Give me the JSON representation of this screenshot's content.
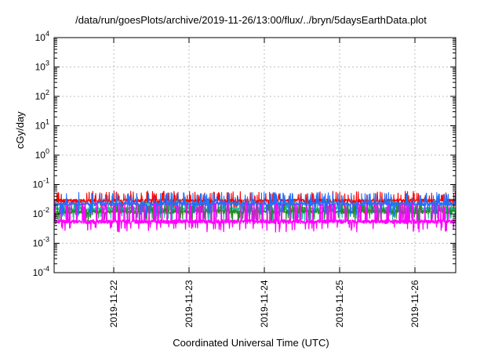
{
  "chart_data": {
    "type": "line",
    "title": "/data/run/goesPlots/archive/2019-11-26/13:00/flux/../bryn/5daysEarthData.plot",
    "xlabel": "Coordinated Universal Time (UTC)",
    "ylabel": "cGy/day",
    "x_scale": "time",
    "y_scale": "log",
    "x_range": [
      "2019-11-21T05:00:00Z",
      "2019-11-26T13:00:00Z"
    ],
    "ylim": [
      0.0001,
      10000
    ],
    "grid": true,
    "y_ticks": [
      {
        "base": "10",
        "exp": "4"
      },
      {
        "base": "10",
        "exp": "3"
      },
      {
        "base": "10",
        "exp": "2"
      },
      {
        "base": "10",
        "exp": "1"
      },
      {
        "base": "10",
        "exp": "0"
      },
      {
        "base": "10",
        "exp": "-1"
      },
      {
        "base": "10",
        "exp": "-2"
      },
      {
        "base": "10",
        "exp": "-3"
      },
      {
        "base": "10",
        "exp": "-4"
      }
    ],
    "x_ticks": [
      "2019-11-22",
      "2019-11-23",
      "2019-11-24",
      "2019-11-25",
      "2019-11-26"
    ],
    "series": [
      {
        "color": "#ff0000",
        "baseline": 0.028,
        "spike": 0.05,
        "dip": 0.012
      },
      {
        "color": "#1f6fff",
        "baseline": 0.022,
        "spike": 0.045,
        "dip": 0.01
      },
      {
        "color": "#1abc9c",
        "baseline": 0.015,
        "spike": 0.025,
        "dip": 0.007
      },
      {
        "color": "#228b22",
        "baseline": 0.012,
        "spike": 0.02,
        "dip": 0.0065
      },
      {
        "color": "#ff00ff",
        "baseline": 0.0055,
        "spike": 0.02,
        "dip": 0.003
      }
    ]
  }
}
